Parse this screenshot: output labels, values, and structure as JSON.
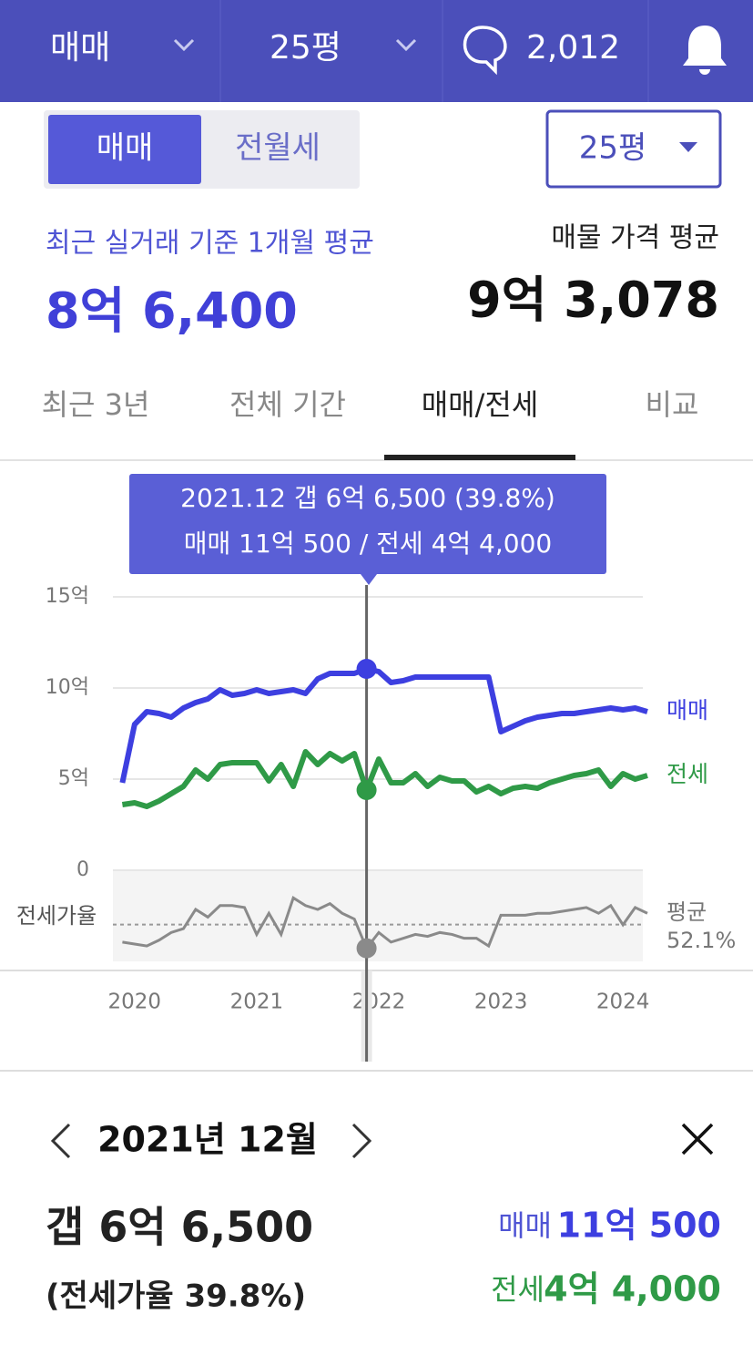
{
  "header": {
    "trade_type": "매매",
    "area": "25평",
    "comment_count": "2,012"
  },
  "toggle": {
    "options": [
      "매매",
      "전월세"
    ],
    "area_select": "25평"
  },
  "summary": {
    "recent_label": "최근 실거래 기준 1개월 평균",
    "recent_price": "8억 6,400",
    "listing_label": "매물 가격 평균",
    "listing_price": "9억 3,078"
  },
  "tabs": [
    "최근 3년",
    "전체 기간",
    "매매/전세",
    "비교"
  ],
  "tooltip": {
    "line1": "2021.12  갭 6억 6,500 (39.8%)",
    "line2": "매매 11억 500 / 전세 4억 4,000"
  },
  "chart_data": {
    "type": "line",
    "x": [
      2019.9,
      2020.0,
      2020.1,
      2020.2,
      2020.3,
      2020.4,
      2020.5,
      2020.6,
      2020.7,
      2020.8,
      2020.9,
      2021.0,
      2021.1,
      2021.2,
      2021.3,
      2021.4,
      2021.5,
      2021.6,
      2021.7,
      2021.8,
      2021.9,
      2022.0,
      2022.1,
      2022.2,
      2022.3,
      2022.4,
      2022.5,
      2022.6,
      2022.7,
      2022.8,
      2022.9,
      2023.0,
      2023.1,
      2023.2,
      2023.3,
      2023.4,
      2023.5,
      2023.6,
      2023.7,
      2023.8,
      2023.9,
      2024.0,
      2024.1,
      2024.2
    ],
    "xlim": [
      2019.8,
      2024.2
    ],
    "xticks": [
      2020,
      2021,
      2022,
      2023,
      2024
    ],
    "ylim": [
      0,
      15
    ],
    "yticks": [
      0,
      {
        "value": 5,
        "label": "5억"
      },
      {
        "value": 10,
        "label": "10억"
      },
      {
        "value": 15,
        "label": "15억"
      }
    ],
    "grid": true,
    "cursor_x": 2021.9,
    "series": [
      {
        "name": "매매",
        "color": "#3d3fe0",
        "values": [
          4.8,
          8.0,
          8.7,
          8.6,
          8.4,
          8.9,
          9.2,
          9.4,
          9.9,
          9.6,
          9.7,
          9.9,
          9.7,
          9.8,
          9.9,
          9.7,
          10.5,
          10.8,
          10.8,
          10.8,
          11.05,
          10.9,
          10.3,
          10.4,
          10.6,
          10.6,
          10.6,
          10.6,
          10.6,
          10.6,
          10.6,
          7.6,
          7.9,
          8.2,
          8.4,
          8.5,
          8.6,
          8.6,
          8.7,
          8.8,
          8.9,
          8.8,
          8.9,
          8.7
        ]
      },
      {
        "name": "전세",
        "color": "#2f9a47",
        "values": [
          3.6,
          3.7,
          3.5,
          3.8,
          4.2,
          4.6,
          5.5,
          5.0,
          5.8,
          5.9,
          5.9,
          5.9,
          4.9,
          5.8,
          4.6,
          6.5,
          5.8,
          6.4,
          6.0,
          6.4,
          4.4,
          6.1,
          4.8,
          4.8,
          5.3,
          4.6,
          5.1,
          4.9,
          4.9,
          4.3,
          4.6,
          4.2,
          4.5,
          4.6,
          4.5,
          4.8,
          5.0,
          5.2,
          5.3,
          5.5,
          4.6,
          5.3,
          5.0,
          5.2
        ]
      }
    ],
    "ratio": {
      "label": "전세가율",
      "color": "#8a8a8a",
      "ylim": [
        33,
        78
      ],
      "values": [
        43,
        42,
        41,
        44,
        48,
        50,
        60,
        56,
        62,
        62,
        61,
        47,
        58,
        47,
        66,
        62,
        60,
        63,
        58,
        55,
        39.8,
        48,
        43,
        45,
        47,
        46,
        48,
        47,
        45,
        45,
        41,
        57,
        57,
        57,
        58,
        58,
        59,
        60,
        61,
        58,
        62,
        52,
        61,
        58
      ],
      "average": {
        "label": "평균",
        "value": 52.1,
        "value_label": "52.1%"
      }
    }
  },
  "detail": {
    "month": "2021년 12월",
    "gap": "갭 6억 6,500",
    "ratio": "(전세가율 39.8%)",
    "sale_label": "매매",
    "sale_price": "11억 500",
    "jeonse_label": "전세",
    "jeonse_price": "4억 4,000"
  }
}
